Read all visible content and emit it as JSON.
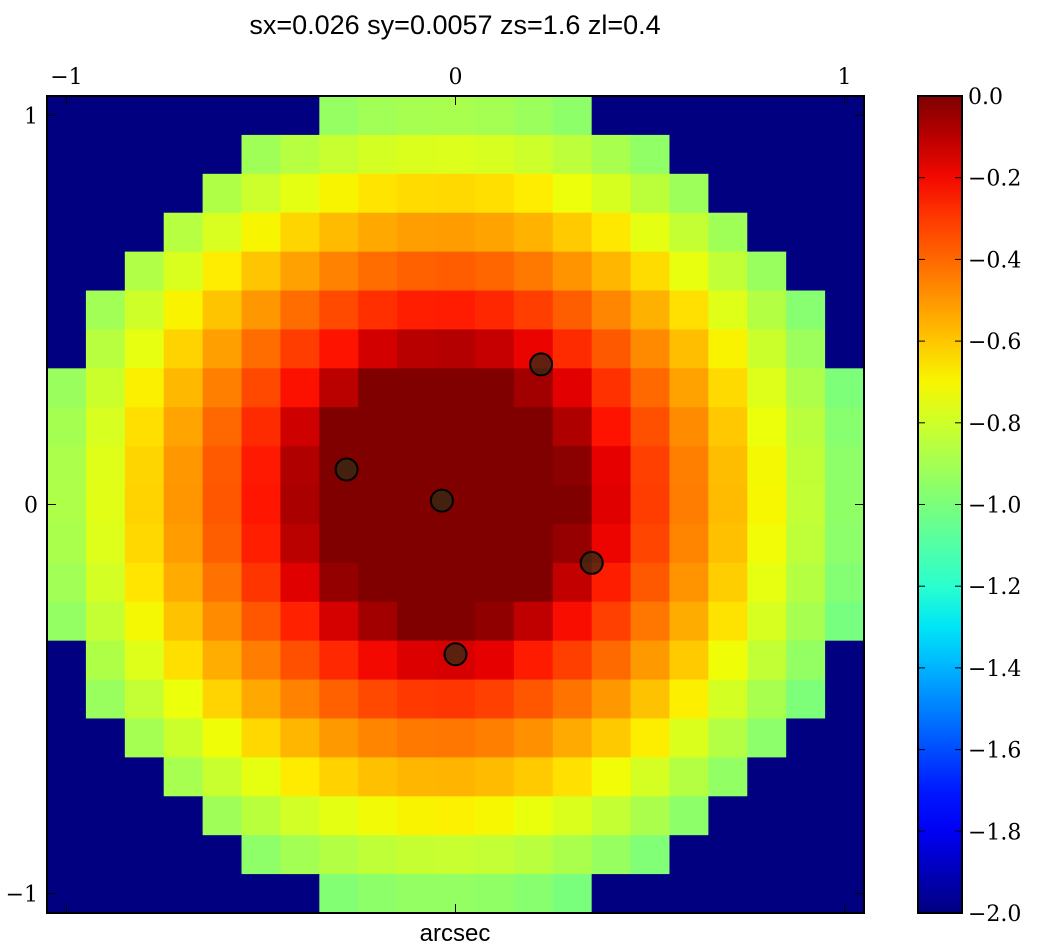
{
  "chart_data": {
    "type": "heatmap",
    "title": "sx=0.026 sy=0.0057 zs=1.6 zl=0.4",
    "xlabel": "arcsec",
    "ylabel": "",
    "xlim": [
      -1.05,
      1.05
    ],
    "ylim": [
      -1.05,
      1.05
    ],
    "x_ticks": [
      {
        "value": -1,
        "label": "−1"
      },
      {
        "value": 0,
        "label": "0"
      },
      {
        "value": 1,
        "label": "1"
      }
    ],
    "top_ticks": [
      {
        "value": -1,
        "label": "−1"
      },
      {
        "value": 0,
        "label": "0"
      },
      {
        "value": 1,
        "label": "1"
      }
    ],
    "y_ticks": [
      {
        "value": 1,
        "label": "1"
      },
      {
        "value": 0,
        "label": "0"
      },
      {
        "value": -1,
        "label": "−1"
      }
    ],
    "colorbar": {
      "min": -2.0,
      "max": 0.0,
      "colormap": "jet",
      "ticks": [
        {
          "value": 0.0,
          "label": "0.0"
        },
        {
          "value": -0.2,
          "label": "−0.2"
        },
        {
          "value": -0.4,
          "label": "−0.4"
        },
        {
          "value": -0.6,
          "label": "−0.6"
        },
        {
          "value": -0.8,
          "label": "−0.8"
        },
        {
          "value": -1.0,
          "label": "−1.0"
        },
        {
          "value": -1.2,
          "label": "−1.2"
        },
        {
          "value": -1.4,
          "label": "−1.4"
        },
        {
          "value": -1.6,
          "label": "−1.6"
        },
        {
          "value": -1.8,
          "label": "−1.8"
        },
        {
          "value": -2.0,
          "label": "−2.0"
        }
      ]
    },
    "grid": {
      "nx": 21,
      "ny": 21,
      "extent": [
        -1.05,
        1.05,
        -1.05,
        1.05
      ],
      "model": {
        "cx": -0.03,
        "cy": 0.02,
        "core_radius": 0.33,
        "scale": 0.74,
        "outer_radius": 1.05,
        "masked_value": -2.0
      }
    },
    "points": [
      {
        "x": -0.28,
        "y": 0.09
      },
      {
        "x": -0.035,
        "y": 0.01
      },
      {
        "x": 0.22,
        "y": 0.36
      },
      {
        "x": 0.35,
        "y": -0.15
      },
      {
        "x": 0.0,
        "y": -0.385
      }
    ]
  }
}
